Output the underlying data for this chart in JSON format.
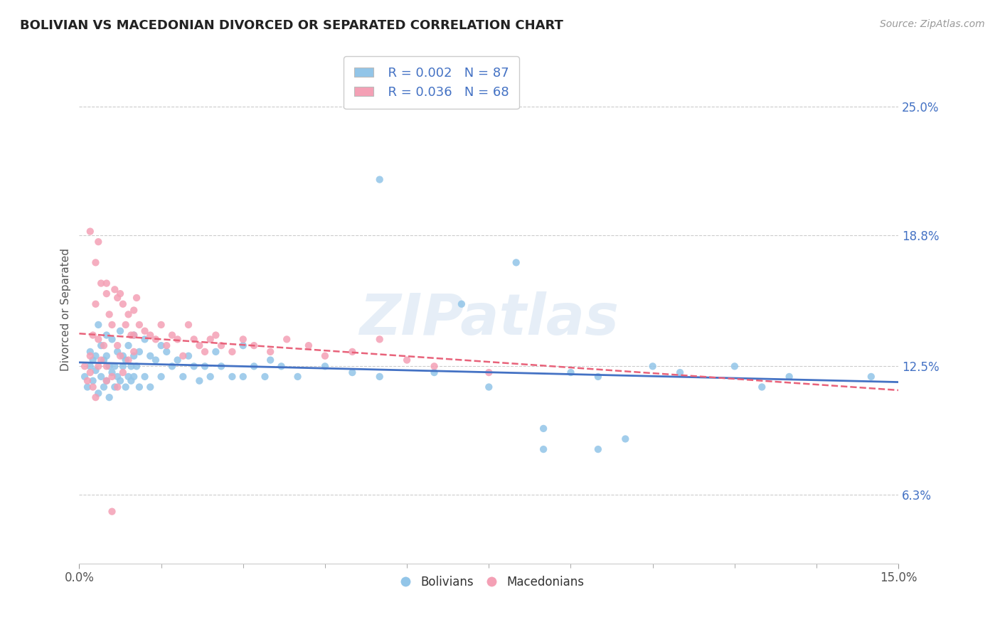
{
  "title": "BOLIVIAN VS MACEDONIAN DIVORCED OR SEPARATED CORRELATION CHART",
  "source": "Source: ZipAtlas.com",
  "ylabel": "Divorced or Separated",
  "ytick_values": [
    6.3,
    12.5,
    18.8,
    25.0
  ],
  "xlim": [
    0.0,
    15.0
  ],
  "ylim": [
    3.0,
    27.5
  ],
  "legend_r_bolivian": "R = 0.002",
  "legend_n_bolivian": "N = 87",
  "legend_r_macedonian": "R = 0.036",
  "legend_n_macedonian": "N = 68",
  "bolivian_color": "#92C5E8",
  "macedonian_color": "#F4A0B5",
  "bolivian_line_color": "#4472C4",
  "macedonian_line_color": "#E8627A",
  "watermark": "ZIPatlas",
  "bov_x": [
    0.1,
    0.15,
    0.2,
    0.2,
    0.25,
    0.25,
    0.3,
    0.3,
    0.35,
    0.35,
    0.4,
    0.4,
    0.45,
    0.45,
    0.5,
    0.5,
    0.5,
    0.55,
    0.55,
    0.6,
    0.6,
    0.65,
    0.65,
    0.7,
    0.7,
    0.75,
    0.75,
    0.8,
    0.8,
    0.85,
    0.85,
    0.9,
    0.9,
    0.95,
    0.95,
    1.0,
    1.0,
    1.0,
    1.05,
    1.1,
    1.1,
    1.2,
    1.2,
    1.3,
    1.3,
    1.4,
    1.5,
    1.5,
    1.6,
    1.7,
    1.8,
    1.9,
    2.0,
    2.1,
    2.2,
    2.3,
    2.4,
    2.5,
    2.6,
    2.8,
    3.0,
    3.0,
    3.2,
    3.4,
    3.5,
    3.7,
    4.0,
    4.5,
    5.0,
    5.5,
    6.5,
    7.5,
    8.0,
    9.0,
    9.5,
    10.5,
    11.0,
    12.0,
    13.0,
    5.5,
    7.0,
    8.5,
    8.5,
    9.5,
    10.0,
    12.5,
    14.5
  ],
  "bov_y": [
    12.0,
    11.5,
    13.2,
    12.5,
    12.8,
    11.8,
    13.0,
    12.3,
    14.5,
    11.2,
    13.5,
    12.0,
    12.8,
    11.5,
    14.0,
    13.0,
    11.8,
    12.5,
    11.0,
    13.8,
    12.2,
    12.5,
    11.5,
    13.2,
    12.0,
    14.2,
    11.8,
    13.0,
    12.5,
    12.8,
    11.5,
    13.5,
    12.0,
    12.5,
    11.8,
    14.0,
    13.0,
    12.0,
    12.5,
    13.2,
    11.5,
    13.8,
    12.0,
    13.0,
    11.5,
    12.8,
    13.5,
    12.0,
    13.2,
    12.5,
    12.8,
    12.0,
    13.0,
    12.5,
    11.8,
    12.5,
    12.0,
    13.2,
    12.5,
    12.0,
    13.5,
    12.0,
    12.5,
    12.0,
    12.8,
    12.5,
    12.0,
    12.5,
    12.2,
    12.0,
    12.2,
    11.5,
    17.5,
    12.2,
    12.0,
    12.5,
    12.2,
    12.5,
    12.0,
    21.5,
    15.5,
    9.5,
    8.5,
    8.5,
    9.0,
    11.5,
    12.0
  ],
  "mac_x": [
    0.1,
    0.15,
    0.2,
    0.2,
    0.25,
    0.25,
    0.3,
    0.3,
    0.35,
    0.35,
    0.4,
    0.4,
    0.45,
    0.5,
    0.5,
    0.5,
    0.55,
    0.6,
    0.6,
    0.65,
    0.7,
    0.7,
    0.75,
    0.75,
    0.8,
    0.8,
    0.85,
    0.9,
    0.9,
    0.95,
    1.0,
    1.0,
    1.0,
    1.05,
    1.1,
    1.2,
    1.3,
    1.4,
    1.5,
    1.6,
    1.7,
    1.8,
    1.9,
    2.0,
    2.1,
    2.2,
    2.3,
    2.4,
    2.5,
    2.6,
    2.8,
    3.0,
    3.2,
    3.5,
    3.8,
    4.2,
    4.5,
    5.0,
    5.5,
    6.0,
    6.5,
    7.5,
    0.2,
    0.3,
    0.35,
    0.5,
    0.6,
    0.7
  ],
  "mac_y": [
    12.5,
    11.8,
    13.0,
    12.2,
    14.0,
    11.5,
    15.5,
    11.0,
    13.8,
    12.5,
    16.5,
    12.8,
    13.5,
    16.0,
    12.5,
    11.8,
    15.0,
    14.5,
    12.0,
    16.2,
    15.8,
    13.5,
    16.0,
    13.0,
    15.5,
    12.2,
    14.5,
    15.0,
    12.8,
    14.0,
    15.2,
    14.0,
    13.2,
    15.8,
    14.5,
    14.2,
    14.0,
    13.8,
    14.5,
    13.5,
    14.0,
    13.8,
    13.0,
    14.5,
    13.8,
    13.5,
    13.2,
    13.8,
    14.0,
    13.5,
    13.2,
    13.8,
    13.5,
    13.2,
    13.8,
    13.5,
    13.0,
    13.2,
    13.8,
    12.8,
    12.5,
    12.2,
    19.0,
    17.5,
    18.5,
    16.5,
    5.5,
    11.5
  ]
}
